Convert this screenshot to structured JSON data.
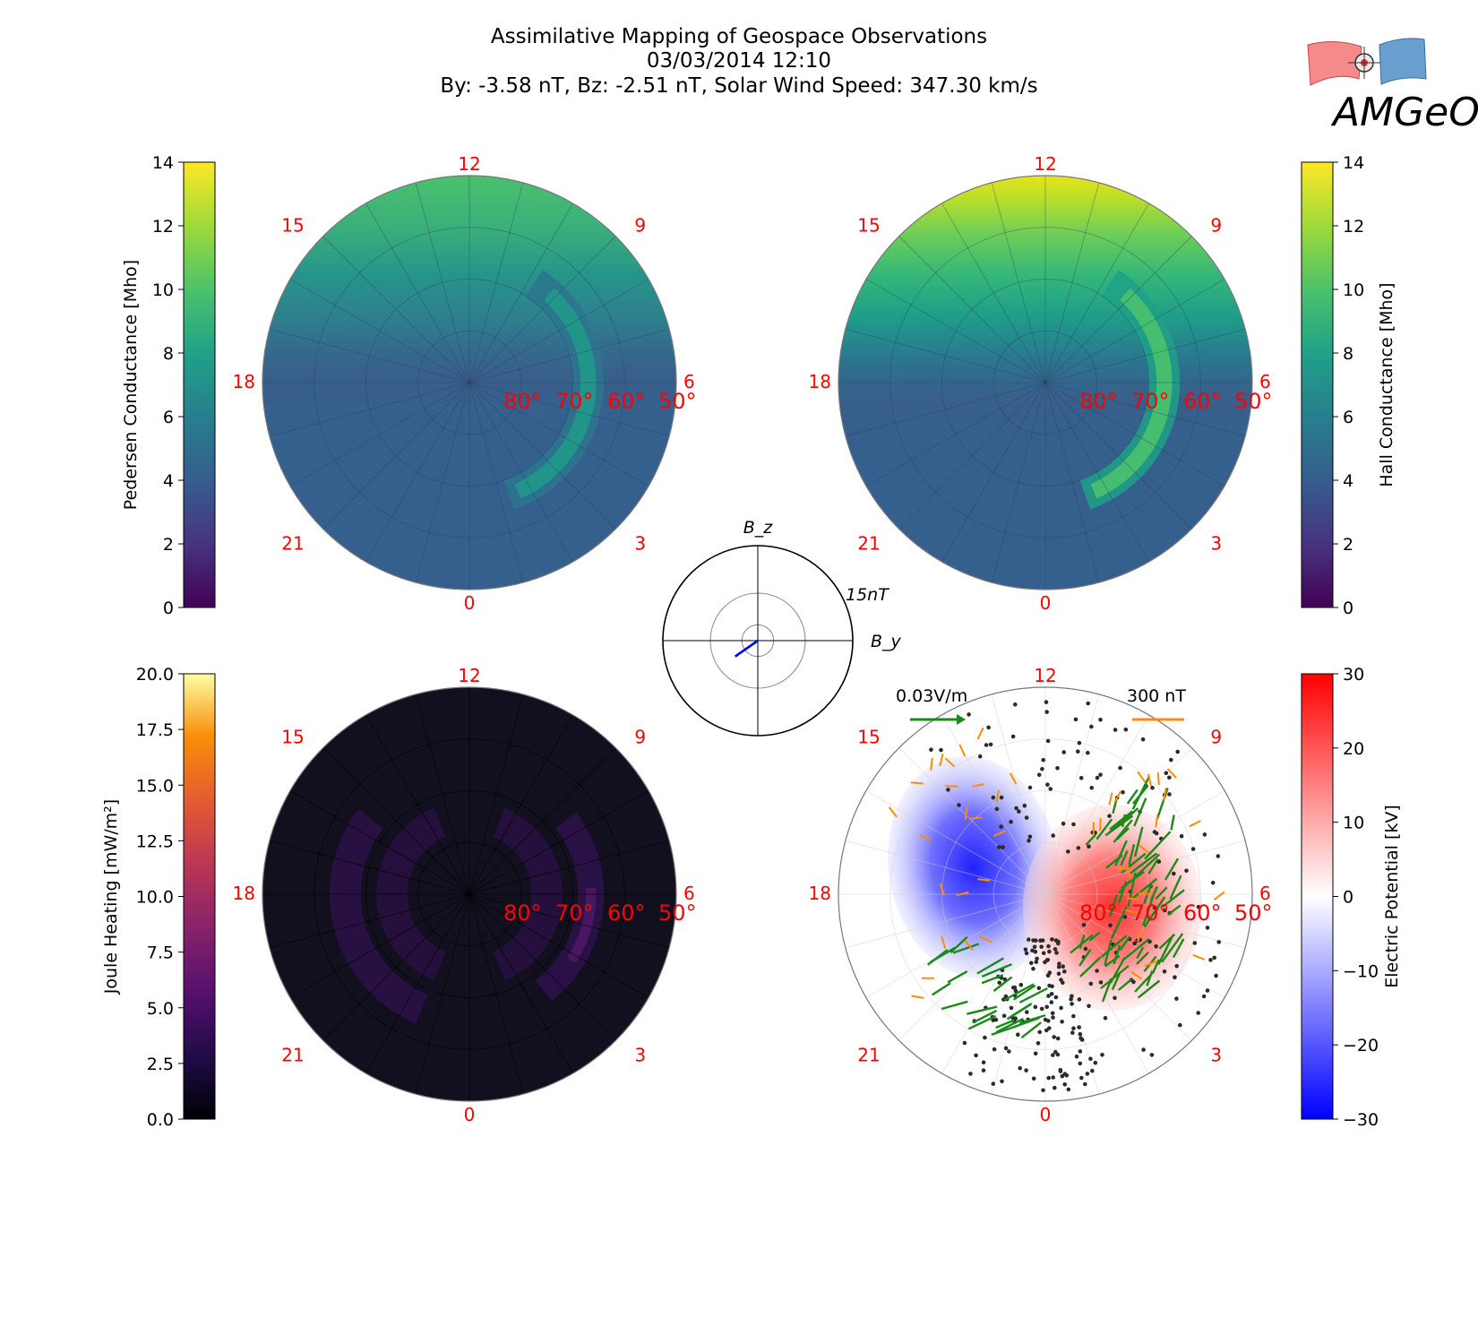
{
  "header": {
    "title_lines": [
      "Assimilative Mapping of Geospace Observations",
      "03/03/2014 12:10",
      "By: -3.58 nT, Bz: -2.51 nT, Solar Wind Speed: 347.30 km/s"
    ],
    "logo_text": "AMGeO"
  },
  "mlt_labels": [
    "12",
    "15",
    "9",
    "18",
    "6",
    "21",
    "3",
    "0"
  ],
  "lat_labels": [
    "80°",
    "70°",
    "60°",
    "50°"
  ],
  "chart_data": [
    {
      "type": "heatmap",
      "panel": "pedersen",
      "colorbar_label": "Pedersen Conductance [Mho]",
      "colorbar_ticks": [
        0,
        2,
        4,
        6,
        8,
        10,
        12,
        14
      ],
      "vmin": 0,
      "vmax": 14,
      "colormap": "viridis",
      "background_value": 4.2,
      "dayside_max": 10.5,
      "auroral_oval_max": 7.5
    },
    {
      "type": "heatmap",
      "panel": "hall",
      "colorbar_label": "Hall Conductance [Mho]",
      "colorbar_ticks": [
        0,
        2,
        4,
        6,
        8,
        10,
        12,
        14
      ],
      "vmin": 0,
      "vmax": 14,
      "colormap": "viridis",
      "background_value": 4.2,
      "dayside_max": 14,
      "auroral_oval_max": 10
    },
    {
      "type": "heatmap",
      "panel": "joule",
      "colorbar_label": "Joule Heating [mW/m²]",
      "colorbar_ticks": [
        "0.0",
        "2.5",
        "5.0",
        "7.5",
        "10.0",
        "12.5",
        "15.0",
        "17.5",
        "20.0"
      ],
      "vmin": 0,
      "vmax": 20,
      "colormap": "inferno",
      "background_value": 0.5,
      "max_value": 4
    },
    {
      "type": "heatmap",
      "panel": "potential",
      "colorbar_label": "Electric Potential [kV]",
      "colorbar_ticks": [
        "30",
        "20",
        "10",
        "0",
        "−10",
        "−20",
        "−30"
      ],
      "vmin": -30,
      "vmax": 30,
      "colormap": "bwr",
      "min_value": -28,
      "max_value": 22,
      "vector_legend": "0.03V/m",
      "vector_color": "#1a8a1a",
      "magnetometer_legend": "300 nT",
      "magnetometer_color": "#ff8c00"
    },
    {
      "type": "scatter",
      "panel": "imf_clock",
      "xlabel": "B_y",
      "ylabel": "B_z",
      "ring_label": "15nT",
      "rings_nT": [
        5,
        15
      ],
      "vector": {
        "By": -3.58,
        "Bz": -2.51
      },
      "vector_color": "#0000ff"
    }
  ]
}
